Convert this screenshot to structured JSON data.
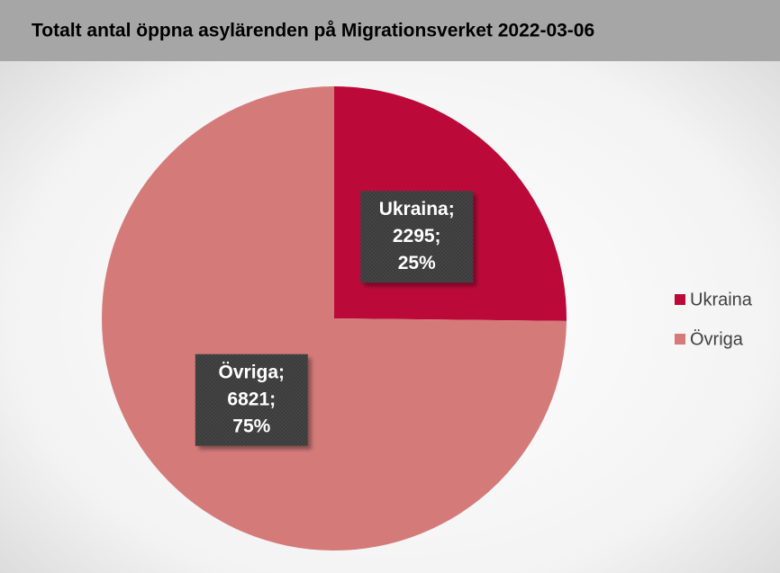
{
  "chart_data": {
    "type": "pie",
    "title": "Totalt antal öppna asylärenden på Migrationsverket 2022-03-06",
    "categories": [
      "Ukraina",
      "Övriga"
    ],
    "values": [
      2295,
      6821
    ],
    "value_labels": [
      [
        "Ukraina;",
        "2295;",
        "25%"
      ],
      [
        "Övriga;",
        "6821;",
        "75%"
      ]
    ],
    "colors": [
      "#bb0a3a",
      "#d47b7a"
    ],
    "legend": "right"
  }
}
